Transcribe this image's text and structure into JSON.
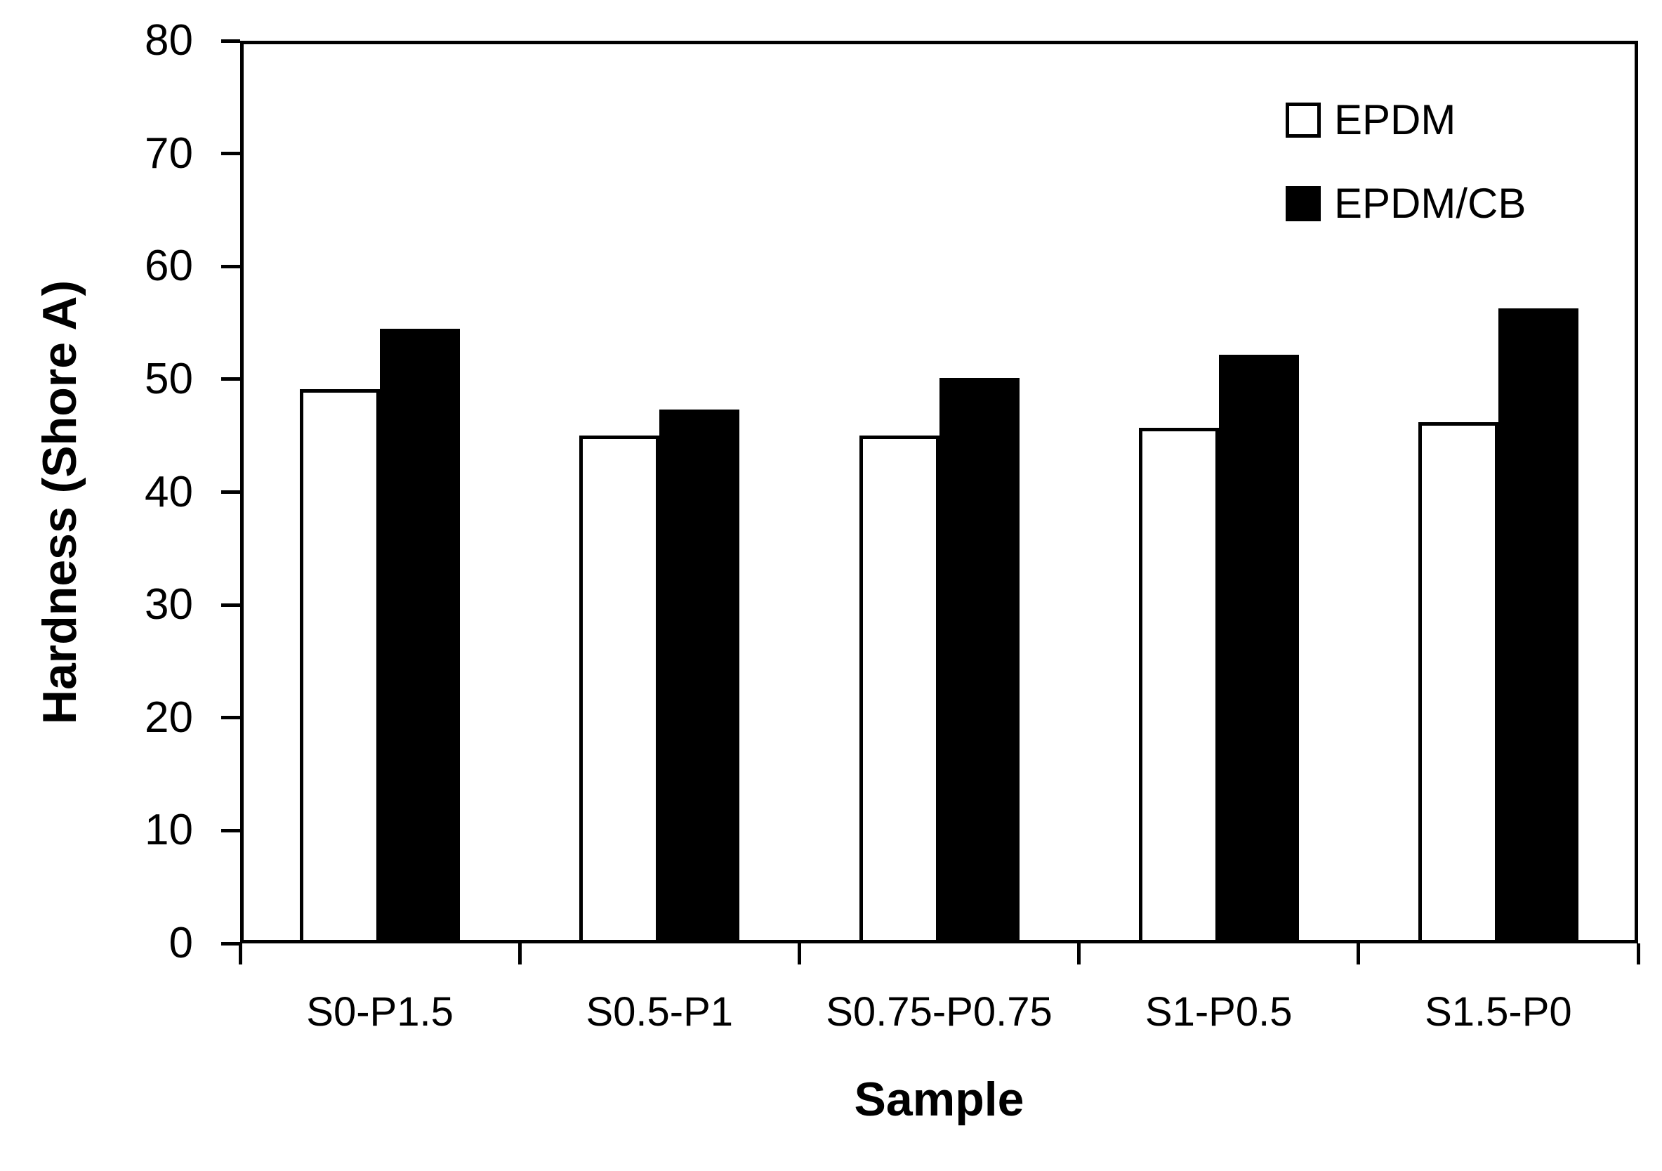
{
  "chart_data": {
    "type": "bar",
    "title": "",
    "categories": [
      "S0-P1.5",
      "S0.5-P1",
      "S0.75-P0.75",
      "S1-P0.5",
      "S1.5-P0"
    ],
    "series": [
      {
        "name": "EPDM",
        "fill": "#ffffff",
        "outline": "#000000",
        "values": [
          49.1,
          45.0,
          45.0,
          45.7,
          46.2
        ]
      },
      {
        "name": "EPDM/CB",
        "fill": "#000000",
        "outline": "#000000",
        "values": [
          54.5,
          47.3,
          50.1,
          52.2,
          56.3
        ]
      }
    ],
    "xlabel": "Sample",
    "ylabel": "Hardness (Shore A)",
    "ylim": [
      0,
      80
    ],
    "ytick_step": 10,
    "ytick_labels": [
      "0",
      "10",
      "20",
      "30",
      "40",
      "50",
      "60",
      "70",
      "80"
    ],
    "grid": false,
    "legend_position": "top-right",
    "legend": [
      {
        "label": "EPDM",
        "swatch_fill": "#ffffff",
        "swatch_outline": "#000000"
      },
      {
        "label": "EPDM/CB",
        "swatch_fill": "#000000",
        "swatch_outline": "#000000"
      }
    ],
    "axis_color": "#000000",
    "background_color": "#ffffff"
  }
}
